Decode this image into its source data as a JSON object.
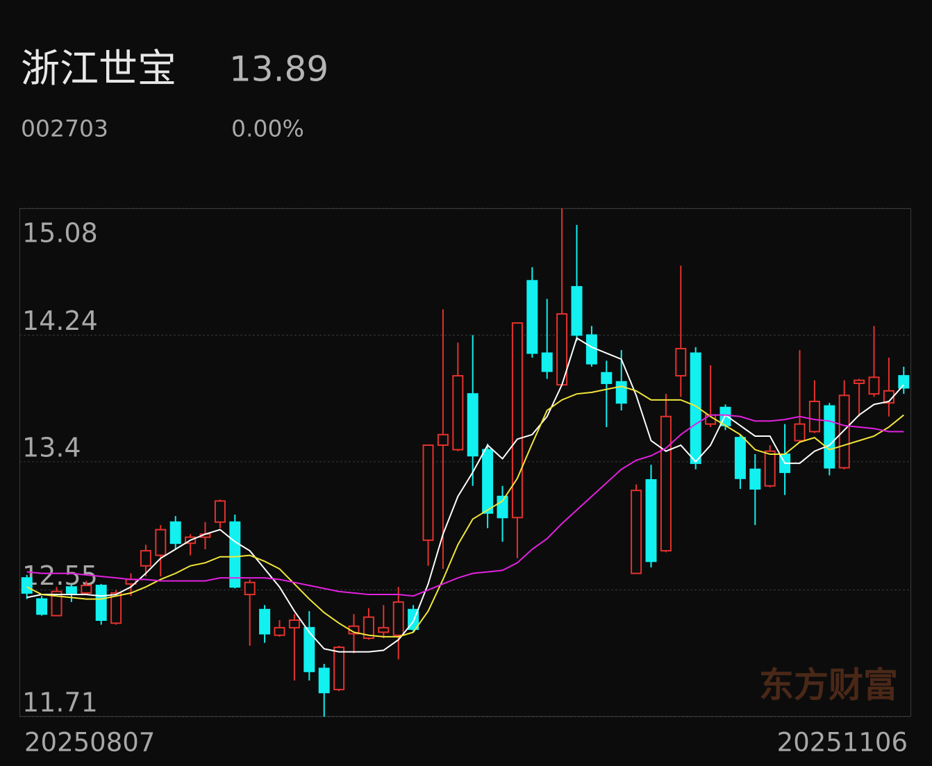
{
  "header": {
    "name": "浙江世宝",
    "price": 13.89,
    "code": "002703",
    "change": "0.00%"
  },
  "chart_data": {
    "type": "candlestick",
    "categories": [
      "20250807",
      null,
      null,
      null,
      null,
      null,
      null,
      null,
      null,
      null,
      null,
      null,
      null,
      null,
      null,
      null,
      null,
      null,
      null,
      null,
      null,
      null,
      null,
      null,
      null,
      null,
      null,
      null,
      null,
      null,
      null,
      null,
      null,
      null,
      null,
      null,
      null,
      null,
      null,
      null,
      null,
      null,
      null,
      null,
      null,
      null,
      null,
      null,
      null,
      null,
      null,
      null,
      null,
      null,
      null,
      null,
      null,
      null,
      null,
      "20251106"
    ],
    "open": [
      12.63,
      12.49,
      12.38,
      12.57,
      12.53,
      12.58,
      12.33,
      12.59,
      12.71,
      12.78,
      13.0,
      12.86,
      12.9,
      13.0,
      13.0,
      12.52,
      12.42,
      12.25,
      12.3,
      12.3,
      12.03,
      11.89,
      12.26,
      12.23,
      12.27,
      12.25,
      12.42,
      12.88,
      13.51,
      13.48,
      13.85,
      13.48,
      13.17,
      13.03,
      14.6,
      14.12,
      13.91,
      14.56,
      14.24,
      13.99,
      13.93,
      12.66,
      13.28,
      12.81,
      13.97,
      14.12,
      13.65,
      13.76,
      13.56,
      13.35,
      13.24,
      13.45,
      13.54,
      13.6,
      13.77,
      13.36,
      13.92,
      13.85,
      13.79,
      13.97
    ],
    "high": [
      12.65,
      12.51,
      12.57,
      12.59,
      12.61,
      12.59,
      12.55,
      12.66,
      12.85,
      12.98,
      13.04,
      12.92,
      13.0,
      13.15,
      13.05,
      12.62,
      12.45,
      12.35,
      12.39,
      12.41,
      12.06,
      12.18,
      12.39,
      12.43,
      12.45,
      12.57,
      12.45,
      13.51,
      14.41,
      14.19,
      14.24,
      13.52,
      13.24,
      14.32,
      14.69,
      14.48,
      15.08,
      14.97,
      14.3,
      14.07,
      14.14,
      13.25,
      13.38,
      13.85,
      14.7,
      14.16,
      14.04,
      13.78,
      13.58,
      13.45,
      13.51,
      13.65,
      14.14,
      13.94,
      13.79,
      13.94,
      13.95,
      14.3,
      14.09,
      14.03
    ],
    "low": [
      12.49,
      12.38,
      12.38,
      12.47,
      12.52,
      12.32,
      12.32,
      12.51,
      12.64,
      12.64,
      12.82,
      12.78,
      12.82,
      12.96,
      12.56,
      12.18,
      12.2,
      12.24,
      11.95,
      11.95,
      11.71,
      11.88,
      12.13,
      12.22,
      12.23,
      12.09,
      12.27,
      12.71,
      12.69,
      13.47,
      13.24,
      12.96,
      12.87,
      12.76,
      14.09,
      13.95,
      13.91,
      14.2,
      14.03,
      13.63,
      13.74,
      12.66,
      12.7,
      12.8,
      13.83,
      13.35,
      13.63,
      13.61,
      13.22,
      12.98,
      13.23,
      13.18,
      13.53,
      13.59,
      13.31,
      13.35,
      13.7,
      13.83,
      13.7,
      13.85
    ],
    "close": [
      12.53,
      12.39,
      12.54,
      12.53,
      12.58,
      12.35,
      12.53,
      12.62,
      12.81,
      12.95,
      12.86,
      12.9,
      12.92,
      13.14,
      12.57,
      12.6,
      12.26,
      12.3,
      12.35,
      12.01,
      11.87,
      12.17,
      12.31,
      12.37,
      12.3,
      12.47,
      12.29,
      13.51,
      13.58,
      13.97,
      13.44,
      13.06,
      13.03,
      14.32,
      14.12,
      14.0,
      14.38,
      14.24,
      14.05,
      13.92,
      13.79,
      13.21,
      12.74,
      13.7,
      14.15,
      13.39,
      13.71,
      13.64,
      13.29,
      13.22,
      13.47,
      13.33,
      13.65,
      13.8,
      13.36,
      13.84,
      13.94,
      13.96,
      13.87,
      13.89
    ],
    "up_color": "#e5322d",
    "down_color": "#12f0f0",
    "ma_lines": [
      {
        "color": "#ffffff",
        "values": [
          12.5,
          12.52,
          12.52,
          12.52,
          12.52,
          12.51,
          12.52,
          12.57,
          12.66,
          12.76,
          12.82,
          12.88,
          12.92,
          12.95,
          12.87,
          12.81,
          12.69,
          12.57,
          12.41,
          12.27,
          12.16,
          12.14,
          12.14,
          12.14,
          12.15,
          12.22,
          12.34,
          12.59,
          12.92,
          13.17,
          13.33,
          13.51,
          13.42,
          13.55,
          13.58,
          13.7,
          13.91,
          14.22,
          14.16,
          14.12,
          14.08,
          13.84,
          13.54,
          13.47,
          13.51,
          13.4,
          13.51,
          13.71,
          13.64,
          13.57,
          13.57,
          13.39,
          13.39,
          13.47,
          13.51,
          13.61,
          13.71,
          13.78,
          13.8,
          13.91
        ]
      },
      {
        "color": "#f2e63a",
        "values": [
          12.57,
          12.52,
          12.51,
          12.5,
          12.49,
          12.49,
          12.51,
          12.53,
          12.57,
          12.62,
          12.66,
          12.71,
          12.73,
          12.77,
          12.77,
          12.78,
          12.74,
          12.69,
          12.59,
          12.49,
          12.4,
          12.33,
          12.27,
          12.25,
          12.24,
          12.24,
          12.27,
          12.41,
          12.62,
          12.85,
          13.02,
          13.08,
          13.14,
          13.29,
          13.52,
          13.74,
          13.81,
          13.85,
          13.86,
          13.88,
          13.9,
          13.87,
          13.81,
          13.81,
          13.81,
          13.77,
          13.7,
          13.64,
          13.58,
          13.48,
          13.45,
          13.45,
          13.53,
          13.56,
          13.48,
          13.51,
          13.54,
          13.57,
          13.63,
          13.71
        ]
      },
      {
        "color": "#e321e0",
        "values": [
          12.67,
          12.66,
          12.66,
          12.66,
          12.65,
          12.64,
          12.63,
          12.62,
          12.62,
          12.61,
          12.61,
          12.61,
          12.61,
          12.63,
          12.63,
          12.63,
          12.63,
          12.62,
          12.6,
          12.58,
          12.56,
          12.54,
          12.53,
          12.52,
          12.52,
          12.52,
          12.51,
          12.55,
          12.59,
          12.63,
          12.66,
          12.67,
          12.68,
          12.73,
          12.82,
          12.89,
          12.99,
          13.08,
          13.17,
          13.26,
          13.35,
          13.41,
          13.44,
          13.49,
          13.58,
          13.65,
          13.71,
          13.71,
          13.7,
          13.67,
          13.67,
          13.68,
          13.7,
          13.68,
          13.67,
          13.64,
          13.63,
          13.62,
          13.6,
          13.6
        ]
      }
    ],
    "ylim": [
      11.71,
      15.08
    ],
    "yticks": [
      15.08,
      14.24,
      13.4,
      12.55,
      11.71
    ],
    "grid": true,
    "watermark": "东方财富"
  }
}
